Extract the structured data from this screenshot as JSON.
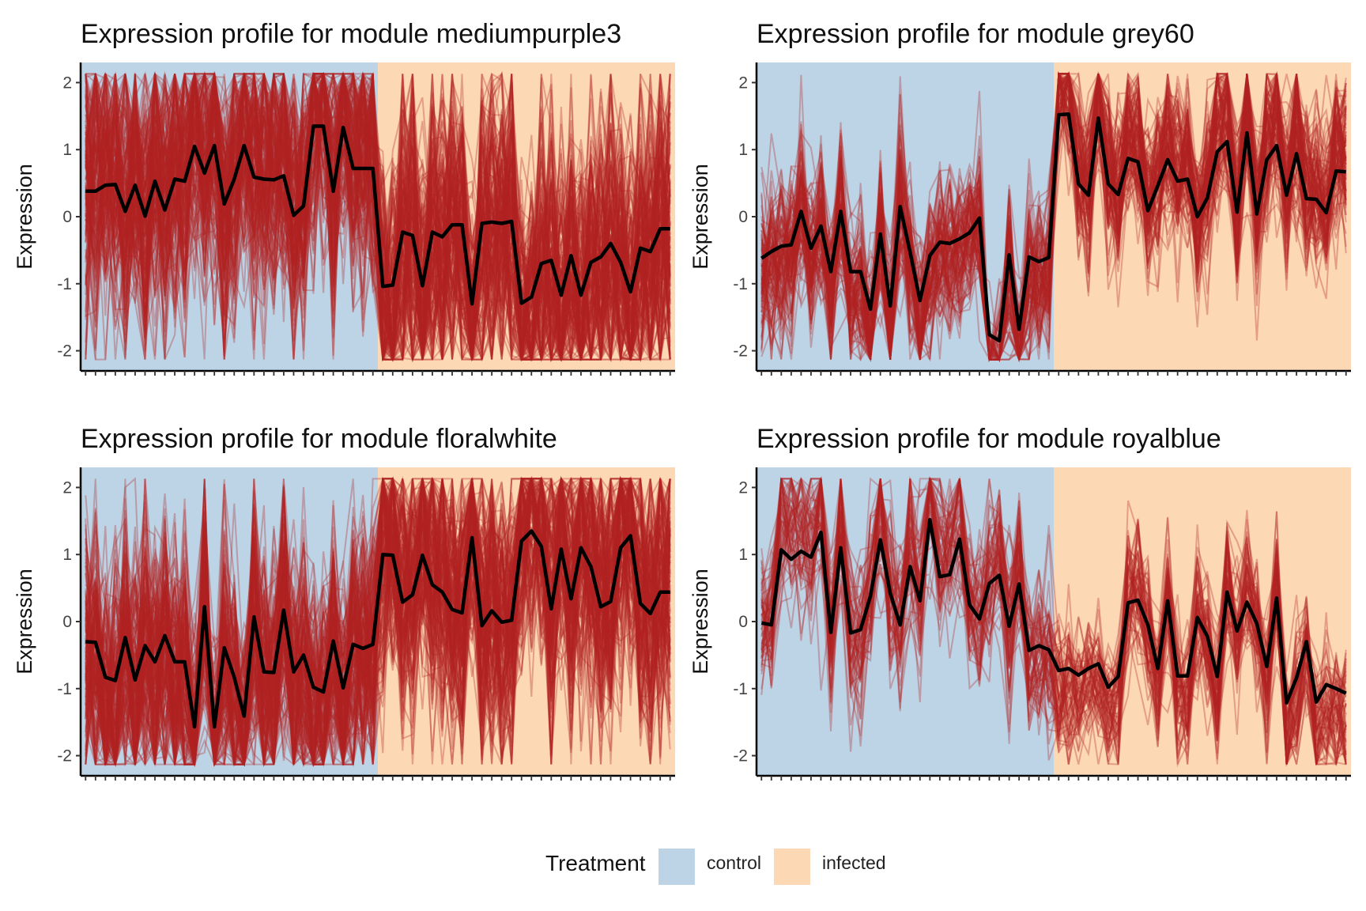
{
  "figure": {
    "legend": {
      "title": "Treatment",
      "entries": [
        {
          "label": "control",
          "color": "#bcd4e6"
        },
        {
          "label": "infected",
          "color": "#fdd8b5"
        }
      ]
    }
  },
  "chart_data": [
    {
      "type": "line",
      "title": "Expression profile for module mediumpurple3",
      "xlabel": "",
      "ylabel": "Expression",
      "ylim": [
        -2.3,
        2.3
      ],
      "yticks": [
        2,
        1,
        0,
        -1,
        -2
      ],
      "n_samples": 60,
      "control_samples": 30,
      "colors": {
        "eigengene": "#000000",
        "genes": "#b22222",
        "control_bg": "#bcd4e6",
        "infected_bg": "#fdd8b5"
      },
      "gene_spread": {
        "control_amplitude": 1.4,
        "infected_amplitude": 1.5,
        "density": "dense"
      },
      "eigengene": [
        0.38,
        0.38,
        0.47,
        0.48,
        0.08,
        0.47,
        0.01,
        0.53,
        0.1,
        0.56,
        0.53,
        1.05,
        0.65,
        1.06,
        0.19,
        0.56,
        1.06,
        0.59,
        0.56,
        0.55,
        0.61,
        0.02,
        0.16,
        1.35,
        1.35,
        0.38,
        1.33,
        0.72,
        0.72,
        0.72,
        -1.04,
        -1.02,
        -0.23,
        -0.28,
        -1.03,
        -0.23,
        -0.3,
        -0.12,
        -0.12,
        -1.3,
        -0.1,
        -0.08,
        -0.1,
        -0.07,
        -1.29,
        -1.2,
        -0.7,
        -0.65,
        -1.17,
        -0.58,
        -1.17,
        -0.68,
        -0.6,
        -0.4,
        -0.68,
        -1.12,
        -0.47,
        -0.52,
        -0.18,
        -0.18
      ]
    },
    {
      "type": "line",
      "title": "Expression profile for module grey60",
      "xlabel": "",
      "ylabel": "Expression",
      "ylim": [
        -2.3,
        2.3
      ],
      "yticks": [
        2,
        1,
        0,
        -1,
        -2
      ],
      "n_samples": 60,
      "control_samples": 30,
      "colors": {
        "eigengene": "#000000",
        "genes": "#b22222",
        "control_bg": "#bcd4e6",
        "infected_bg": "#fdd8b5"
      },
      "gene_spread": {
        "control_amplitude": 0.75,
        "infected_amplitude": 0.8,
        "density": "medium"
      },
      "eigengene": [
        -0.62,
        -0.52,
        -0.44,
        -0.42,
        0.08,
        -0.47,
        -0.14,
        -0.82,
        0.08,
        -0.82,
        -0.82,
        -1.38,
        -0.26,
        -1.33,
        0.15,
        -0.53,
        -1.25,
        -0.58,
        -0.38,
        -0.4,
        -0.33,
        -0.24,
        -0.02,
        -1.76,
        -1.85,
        -0.57,
        -1.68,
        -0.6,
        -0.67,
        -0.61,
        1.52,
        1.53,
        0.49,
        0.32,
        1.47,
        0.49,
        0.33,
        0.87,
        0.82,
        0.09,
        0.46,
        0.85,
        0.53,
        0.56,
        0.0,
        0.28,
        0.97,
        1.12,
        0.07,
        1.25,
        0.04,
        0.85,
        1.06,
        0.32,
        0.94,
        0.27,
        0.26,
        0.06,
        0.68,
        0.67
      ]
    },
    {
      "type": "line",
      "title": "Expression profile for module floralwhite",
      "xlabel": "",
      "ylabel": "Expression",
      "ylim": [
        -2.3,
        2.3
      ],
      "yticks": [
        2,
        1,
        0,
        -1,
        -2
      ],
      "n_samples": 60,
      "control_samples": 30,
      "colors": {
        "eigengene": "#000000",
        "genes": "#b22222",
        "control_bg": "#bcd4e6",
        "infected_bg": "#fdd8b5"
      },
      "gene_spread": {
        "control_amplitude": 1.3,
        "infected_amplitude": 1.4,
        "density": "dense"
      },
      "eigengene": [
        -0.3,
        -0.31,
        -0.83,
        -0.88,
        -0.24,
        -0.87,
        -0.36,
        -0.6,
        -0.21,
        -0.6,
        -0.6,
        -1.57,
        0.22,
        -1.57,
        -0.39,
        -0.83,
        -1.41,
        0.07,
        -0.75,
        -0.76,
        0.17,
        -0.75,
        -0.5,
        -0.98,
        -1.05,
        -0.29,
        -0.99,
        -0.34,
        -0.4,
        -0.34,
        1.0,
        0.99,
        0.29,
        0.4,
        0.99,
        0.55,
        0.44,
        0.18,
        0.13,
        1.25,
        -0.06,
        0.16,
        -0.01,
        0.02,
        1.2,
        1.35,
        1.12,
        0.19,
        1.08,
        0.34,
        1.1,
        0.82,
        0.22,
        0.3,
        1.1,
        1.28,
        0.27,
        0.12,
        0.44,
        0.44
      ]
    },
    {
      "type": "line",
      "title": "Expression profile for module royalblue",
      "xlabel": "",
      "ylabel": "Expression",
      "ylim": [
        -2.3,
        2.3
      ],
      "yticks": [
        2,
        1,
        0,
        -1,
        -2
      ],
      "n_samples": 60,
      "control_samples": 30,
      "colors": {
        "eigengene": "#000000",
        "genes": "#b22222",
        "control_bg": "#bcd4e6",
        "infected_bg": "#fdd8b5"
      },
      "gene_spread": {
        "control_amplitude": 0.8,
        "infected_amplitude": 0.65,
        "density": "sparse"
      },
      "eigengene": [
        -0.02,
        -0.05,
        1.07,
        0.93,
        1.05,
        0.96,
        1.33,
        -0.16,
        1.1,
        -0.17,
        -0.12,
        0.38,
        1.22,
        0.42,
        -0.05,
        0.82,
        0.31,
        1.52,
        0.67,
        0.7,
        1.23,
        0.25,
        0.04,
        0.57,
        0.69,
        -0.07,
        0.56,
        -0.43,
        -0.36,
        -0.42,
        -0.73,
        -0.7,
        -0.8,
        -0.7,
        -0.63,
        -0.98,
        -0.82,
        0.28,
        0.32,
        -0.05,
        -0.7,
        0.31,
        -0.81,
        -0.81,
        0.06,
        -0.22,
        -0.82,
        0.44,
        -0.14,
        0.29,
        -0.03,
        -0.67,
        0.35,
        -1.21,
        -0.84,
        -0.3,
        -1.2,
        -0.94,
        -1.0,
        -1.07
      ]
    }
  ]
}
